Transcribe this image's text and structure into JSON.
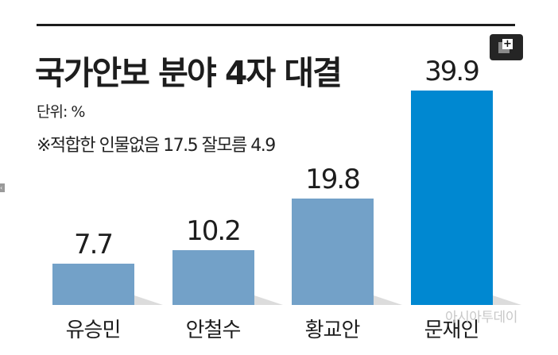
{
  "header": {
    "title": "국가안보 분야 4자 대결",
    "unit": "단위: %",
    "note": "※적합한 인물없음 17.5 잘모름 4.9"
  },
  "controls": {
    "expand_icon": "expand-plus-icon",
    "expand_symbol": "+",
    "side_arrow_icon": "chevron-left-icon",
    "side_arrow_symbol": "‹"
  },
  "watermark": "아시아투데이",
  "colors": {
    "bar_default": "#73a1c8",
    "bar_highlight": "#0088d1",
    "text": "#1d1d1d"
  },
  "chart_data": {
    "type": "bar",
    "title": "국가안보 분야 4자 대결",
    "subtitle": "단위: %",
    "annotation": "※적합한 인물없음 17.5 잘모름 4.9",
    "categories": [
      "유승민",
      "안철수",
      "황교안",
      "문재인"
    ],
    "values": [
      7.7,
      10.2,
      19.8,
      39.9
    ],
    "value_labels": [
      "7.7",
      "10.2",
      "19.8",
      "39.9"
    ],
    "highlight_index": 3,
    "xlabel": "",
    "ylabel": "%",
    "ylim": [
      0,
      40
    ],
    "grid": false,
    "legend": null
  }
}
